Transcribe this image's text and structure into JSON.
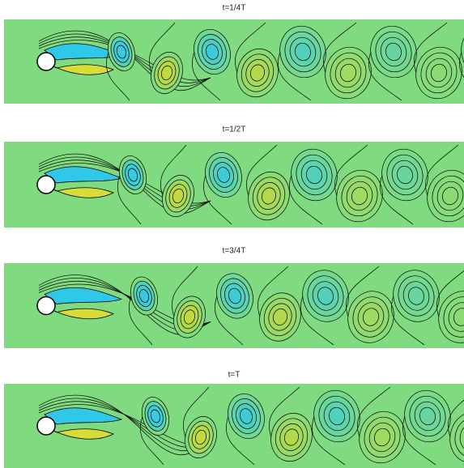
{
  "panels": [
    {
      "title": "t=1/4T"
    },
    {
      "title": "t=1/2T"
    },
    {
      "title": "t=3/4T"
    },
    {
      "title": "t=T"
    }
  ]
}
